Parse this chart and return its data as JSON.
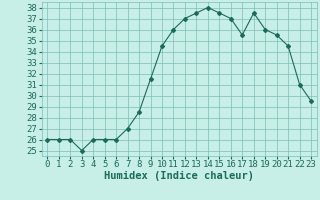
{
  "x": [
    0,
    1,
    2,
    3,
    4,
    5,
    6,
    7,
    8,
    9,
    10,
    11,
    12,
    13,
    14,
    15,
    16,
    17,
    18,
    19,
    20,
    21,
    22,
    23
  ],
  "y": [
    26,
    26,
    26,
    25,
    26,
    26,
    26,
    27,
    28.5,
    31.5,
    34.5,
    36,
    37,
    37.5,
    38,
    37.5,
    37,
    35.5,
    37.5,
    36,
    35.5,
    34.5,
    31,
    29.5
  ],
  "line_color": "#1a6b5a",
  "marker": "D",
  "marker_size": 2.0,
  "bg_color": "#c8eee8",
  "grid_color": "#7abfb5",
  "xlabel": "Humidex (Indice chaleur)",
  "ylim": [
    24.5,
    38.5
  ],
  "xlim": [
    -0.5,
    23.5
  ],
  "yticks": [
    25,
    26,
    27,
    28,
    29,
    30,
    31,
    32,
    33,
    34,
    35,
    36,
    37,
    38
  ],
  "xticks": [
    0,
    1,
    2,
    3,
    4,
    5,
    6,
    7,
    8,
    9,
    10,
    11,
    12,
    13,
    14,
    15,
    16,
    17,
    18,
    19,
    20,
    21,
    22,
    23
  ],
  "tick_fontsize": 6.5,
  "label_fontsize": 7.5
}
